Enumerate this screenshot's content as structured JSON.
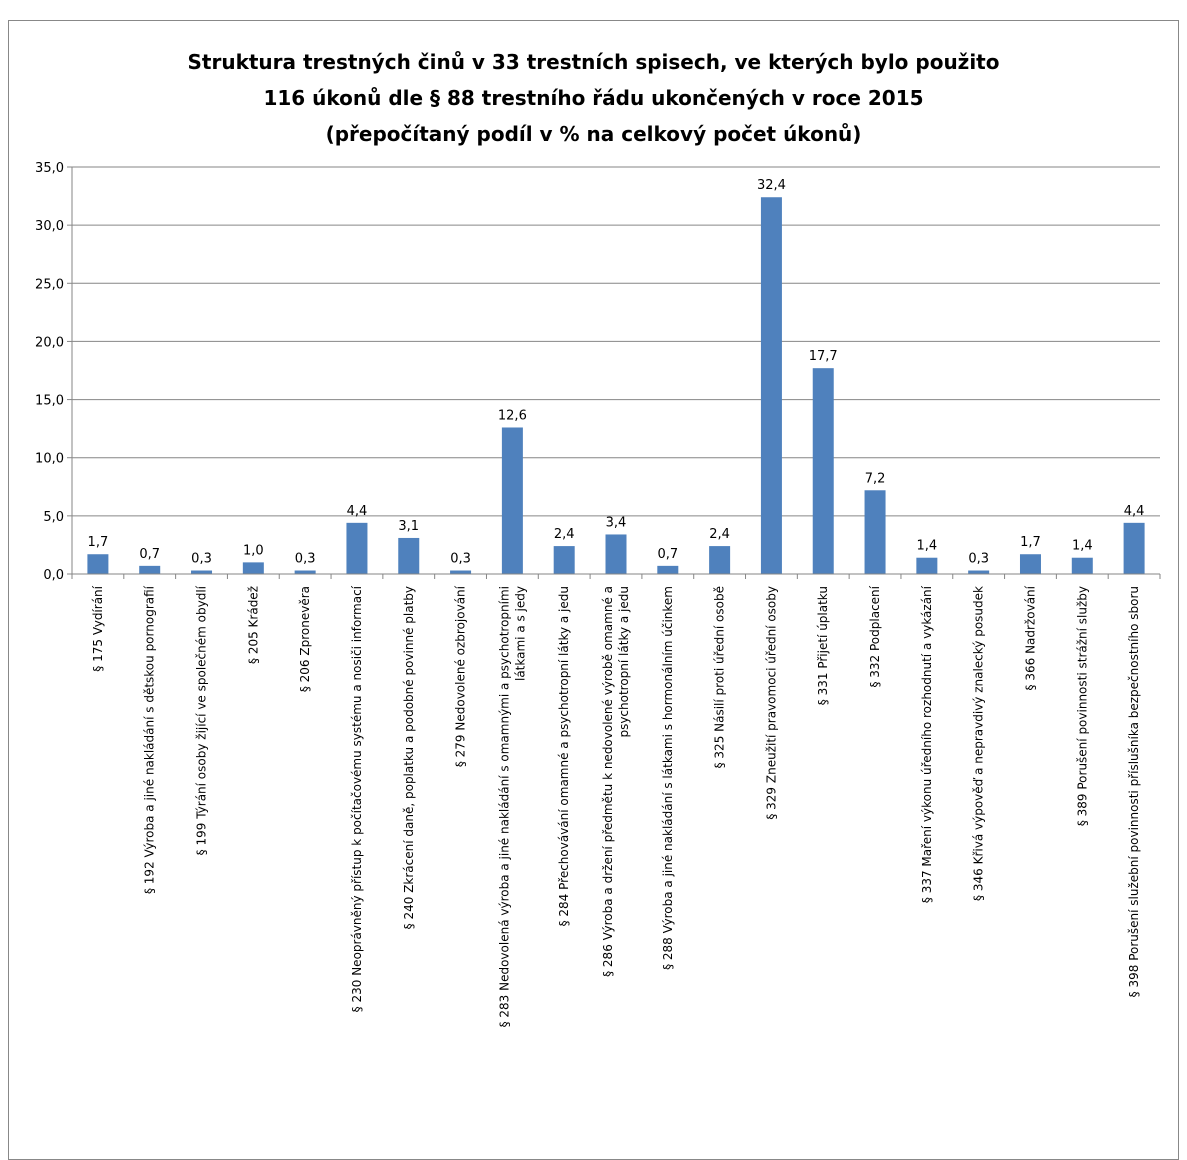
{
  "chart_data": {
    "type": "bar",
    "title": [
      "Struktura trestných činů v 33 trestních spisech, ve kterých bylo použito",
      "116 úkonů dle § 88 trestního řádu ukončených v roce 2015",
      "(přepočítaný podíl v % na celkový počet úkonů)"
    ],
    "xlabel": "",
    "ylabel": "",
    "ylim": [
      0,
      35
    ],
    "yticks": [
      "0,0",
      "5,0",
      "10,0",
      "15,0",
      "20,0",
      "25,0",
      "30,0",
      "35,0"
    ],
    "grid": true,
    "legend": "none",
    "bar_color": "#4F81BD",
    "categories": [
      [
        "§ 175 Vydírání"
      ],
      [
        "§ 192 Výroba a jiné nakládání s dětskou pornografií"
      ],
      [
        "§ 199 Týrání osoby žijící ve společném obydlí"
      ],
      [
        "§ 205 Krádež"
      ],
      [
        "§ 206 Zpronevěra"
      ],
      [
        "§ 230 Neoprávněný přístup k počítačovému systému a nosiči informací"
      ],
      [
        "§ 240 Zkrácení daně, poplatku a podobné povinné platby"
      ],
      [
        "§ 279 Nedovolené ozbrojování"
      ],
      [
        "§ 283 Nedovolená výroba a jiné nakládání s omamnými a psychotropními",
        "látkami a s jedy"
      ],
      [
        "§ 284 Přechovávání omamné a psychotropní látky a jedu"
      ],
      [
        "§ 286 Výroba a držení předmětu k nedovolené výrobě omamné a",
        "psychotropní látky a jedu"
      ],
      [
        "§ 288 Výroba a jiné nakládání s látkami s hormonálním účinkem"
      ],
      [
        "§ 325 Násilí proti úřední osobě"
      ],
      [
        "§ 329 Zneužití pravomoci úřední osoby"
      ],
      [
        "§ 331 Přijetí úplatku"
      ],
      [
        "§ 332 Podplacení"
      ],
      [
        "§ 337 Maření výkonu úředního rozhodnutí a vykázání"
      ],
      [
        "§ 346 Křivá výpověď a nepravdivý znalecký posudek"
      ],
      [
        "§ 366 Nadržování"
      ],
      [
        "§ 389 Porušení povinnosti strážní služby"
      ],
      [
        "§ 398 Porušení služební povinnosti příslušníka bezpečnostního sboru"
      ]
    ],
    "values": [
      1.7,
      0.7,
      0.3,
      1.0,
      0.3,
      4.4,
      3.1,
      0.3,
      12.6,
      2.4,
      3.4,
      0.7,
      2.4,
      32.4,
      17.7,
      7.2,
      1.4,
      0.3,
      1.7,
      1.4,
      4.4
    ],
    "value_labels": [
      "1,7",
      "0,7",
      "0,3",
      "1,0",
      "0,3",
      "4,4",
      "3,1",
      "0,3",
      "12,6",
      "2,4",
      "3,4",
      "0,7",
      "2,4",
      "32,4",
      "17,7",
      "7,2",
      "1,4",
      "0,3",
      "1,7",
      "1,4",
      "4,4"
    ]
  }
}
